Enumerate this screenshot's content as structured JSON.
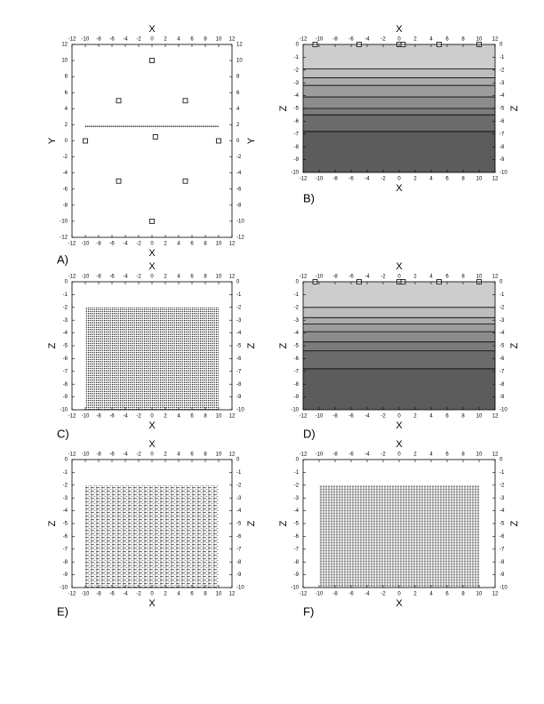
{
  "chart_data": [
    {
      "type": "scatter",
      "label": "A)",
      "xlabel": "X",
      "ylabel": "Y",
      "xlim": [
        -12,
        12
      ],
      "ylim": [
        -12,
        12
      ],
      "xticks": [
        -12,
        -10,
        -8,
        -6,
        -4,
        -2,
        0,
        2,
        4,
        6,
        8,
        10,
        12
      ],
      "yticks": [
        -12,
        -10,
        -8,
        -6,
        -4,
        -2,
        0,
        2,
        4,
        6,
        8,
        10,
        12
      ],
      "x": [
        0,
        -5,
        5,
        -10,
        10,
        0.5,
        -5,
        5,
        0
      ],
      "y": [
        10,
        5,
        5,
        0,
        0,
        0.5,
        -5,
        -5,
        -10
      ],
      "line": {
        "x": [
          -10,
          10
        ],
        "y": [
          1.8,
          1.8
        ]
      }
    },
    {
      "type": "contour",
      "label": "B)",
      "xlabel": "X",
      "ylabel": "Z",
      "xlim": [
        -12,
        12
      ],
      "ylim": [
        -10,
        0
      ],
      "xticks": [
        -12,
        -10,
        -8,
        -6,
        -4,
        -2,
        0,
        2,
        4,
        6,
        8,
        10,
        12
      ],
      "yticks": [
        0,
        -1,
        -2,
        -3,
        -4,
        -5,
        -6,
        -7,
        -8,
        -9,
        -10
      ],
      "layers": {
        "tops": [
          0,
          -1.9,
          -2.6,
          -3.2,
          -4.1,
          -5,
          -5.5,
          -6.8
        ],
        "colors": [
          "#cdcdcd",
          "#bdbdbd",
          "#acacac",
          "#9c9c9c",
          "#8c8c8c",
          "#7c7c7c",
          "#6c6c6c",
          "#5c5c5c"
        ]
      },
      "x": [
        -10.5,
        -5,
        0,
        0.5,
        5,
        10
      ],
      "y": [
        0,
        0,
        0,
        0,
        0,
        0
      ]
    },
    {
      "type": "grid",
      "label": "C)",
      "xlabel": "X",
      "ylabel": "Z",
      "xlim": [
        -12,
        12
      ],
      "ylim": [
        -10,
        0
      ],
      "xticks": [
        -12,
        -10,
        -8,
        -6,
        -4,
        -2,
        0,
        2,
        4,
        6,
        8,
        10,
        12
      ],
      "yticks": [
        0,
        -1,
        -2,
        -3,
        -4,
        -5,
        -6,
        -7,
        -8,
        -9,
        -10
      ],
      "region": {
        "x": [
          -10,
          10
        ],
        "y": [
          -10,
          -2
        ]
      }
    },
    {
      "type": "contour",
      "label": "D)",
      "xlabel": "X",
      "ylabel": "Z",
      "xlim": [
        -12,
        12
      ],
      "ylim": [
        -10,
        0
      ],
      "xticks": [
        -12,
        -10,
        -8,
        -6,
        -4,
        -2,
        0,
        2,
        4,
        6,
        8,
        10,
        12
      ],
      "yticks": [
        0,
        -1,
        -2,
        -3,
        -4,
        -5,
        -6,
        -7,
        -8,
        -9,
        -10
      ],
      "layers": {
        "tops": [
          0,
          -2,
          -2.8,
          -3.3,
          -3.9,
          -4.7,
          -5.4,
          -6.8
        ],
        "colors": [
          "#cdcdcd",
          "#bdbdbd",
          "#acacac",
          "#9c9c9c",
          "#8c8c8c",
          "#7c7c7c",
          "#6c6c6c",
          "#5c5c5c"
        ]
      },
      "x": [
        -10.5,
        -5,
        0,
        0.5,
        5,
        10
      ],
      "y": [
        0,
        0,
        0,
        0,
        0,
        0
      ]
    },
    {
      "type": "vector",
      "label": "E)",
      "xlabel": "X",
      "ylabel": "Z",
      "xlim": [
        -12,
        12
      ],
      "ylim": [
        -10,
        0
      ],
      "xticks": [
        -12,
        -10,
        -8,
        -6,
        -4,
        -2,
        0,
        2,
        4,
        6,
        8,
        10,
        12
      ],
      "yticks": [
        0,
        -1,
        -2,
        -3,
        -4,
        -5,
        -6,
        -7,
        -8,
        -9,
        -10
      ],
      "region": {
        "x": [
          -10,
          10
        ],
        "y": [
          -10,
          -2
        ]
      }
    },
    {
      "type": "vector",
      "label": "F)",
      "xlabel": "X",
      "ylabel": "Z",
      "xlim": [
        -12,
        12
      ],
      "ylim": [
        -10,
        0
      ],
      "xticks": [
        -12,
        -10,
        -8,
        -6,
        -4,
        -2,
        0,
        2,
        4,
        6,
        8,
        10,
        12
      ],
      "yticks": [
        0,
        -1,
        -2,
        -3,
        -4,
        -5,
        -6,
        -7,
        -8,
        -9,
        -10
      ],
      "region": {
        "x": [
          -10,
          10
        ],
        "y": [
          -10,
          -2
        ]
      }
    }
  ]
}
